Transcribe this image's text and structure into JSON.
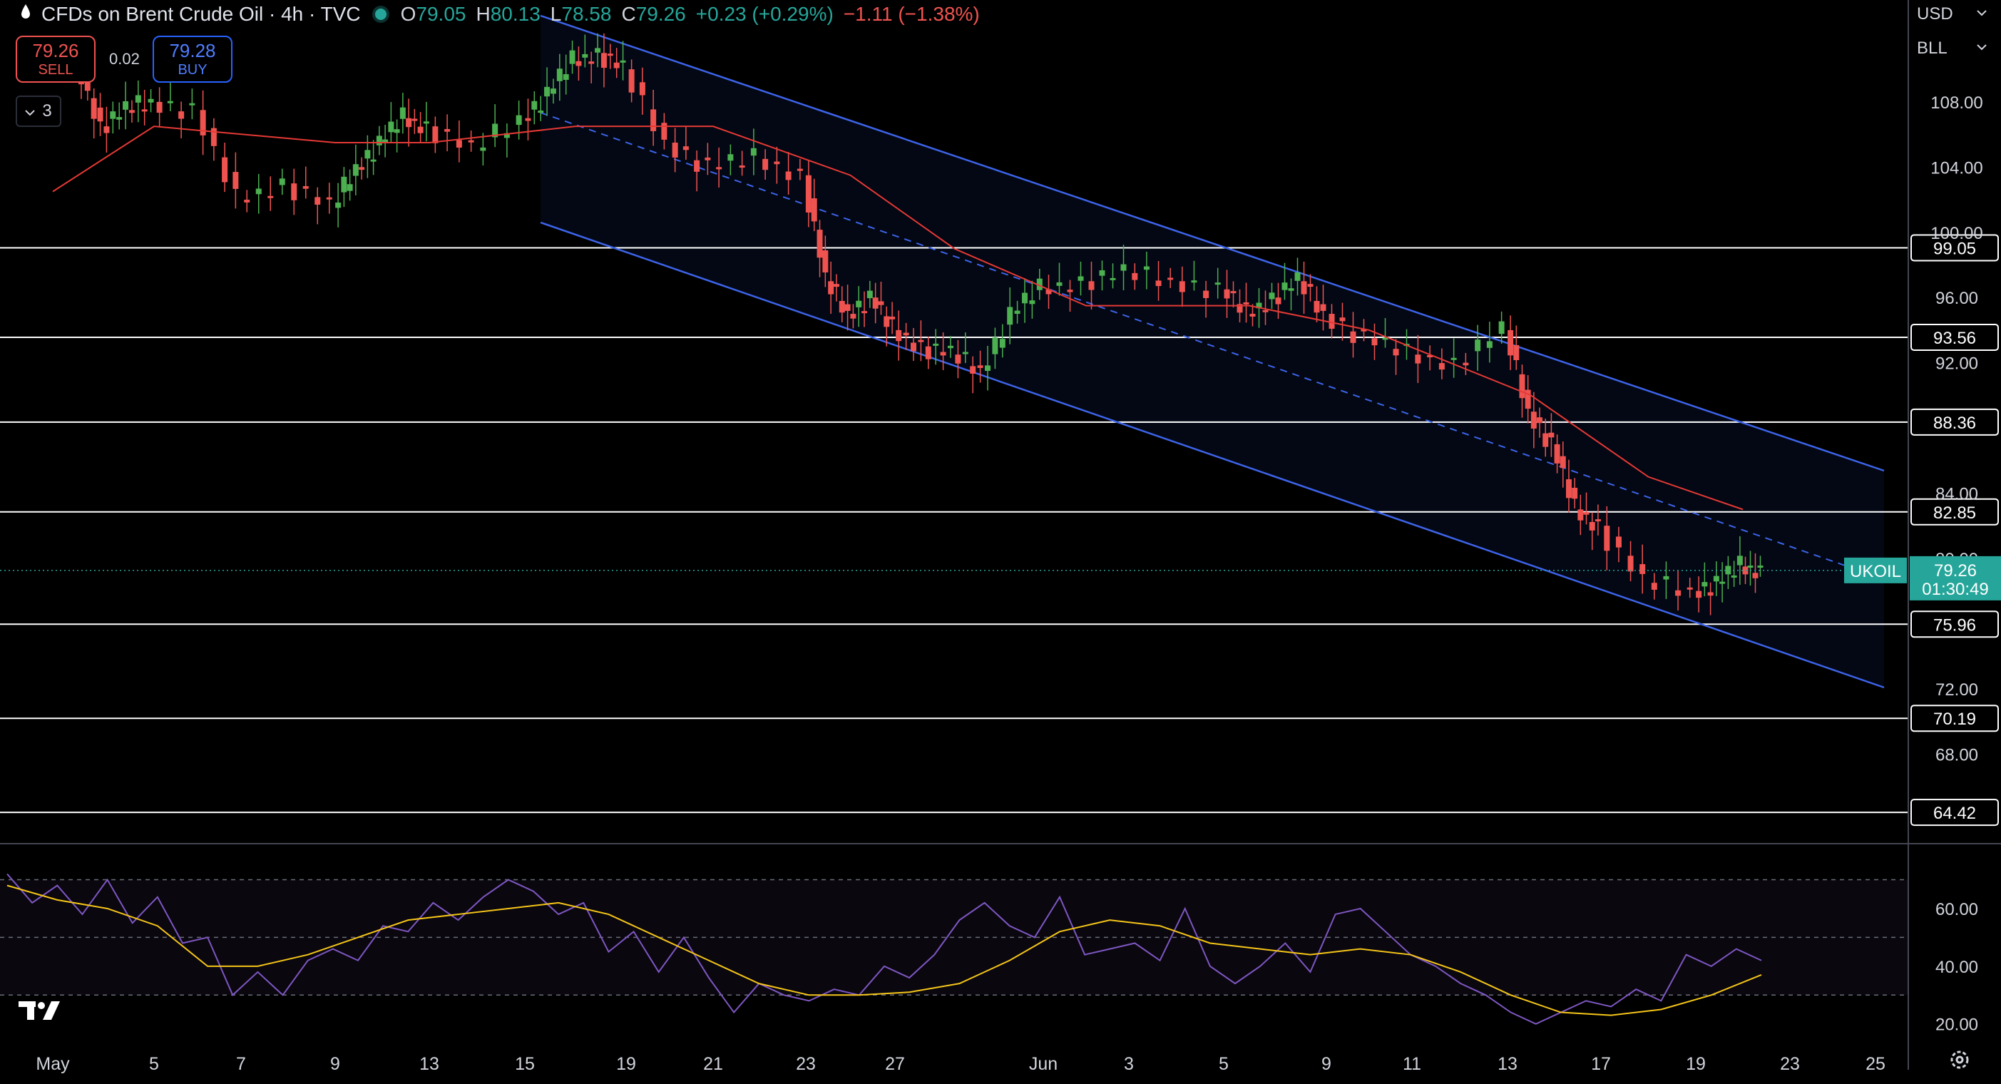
{
  "header": {
    "symbol": "CFDs on Brent Crude Oil · 4h · TVC",
    "open_label": "O",
    "open": "79.05",
    "high_label": "H",
    "high": "80.13",
    "low_label": "L",
    "low": "78.58",
    "close_label": "C",
    "close": "79.26",
    "change": "+0.23 (+0.29%)",
    "change2": "−1.11 (−1.38%)"
  },
  "trade": {
    "sell_price": "79.26",
    "sell_label": "SELL",
    "buy_price": "79.28",
    "buy_label": "BUY",
    "spread": "0.02"
  },
  "indicators_count": "3",
  "currency": "USD",
  "unit": "BLL",
  "colors": {
    "background": "#000000",
    "up": "#26a69a",
    "candle_up": "#4caf50",
    "down": "#ef5350",
    "ma": "#e53935",
    "channel": "#3d63e8",
    "rsi": "#7e57c2",
    "rsi_ma": "#f5c518",
    "price_tag": "#26a69a"
  },
  "icons": {
    "logo": "tradingview-logo-icon",
    "settings": "gear-icon",
    "chevron": "chevron-down-icon",
    "drop": "oil-drop-icon"
  },
  "chart_data": [
    {
      "type": "line",
      "name": "price",
      "title": "CFDs on Brent Crude Oil · 4h · TVC",
      "x_ticks": [
        "May",
        "5",
        "7",
        "9",
        "13",
        "15",
        "19",
        "21",
        "23",
        "27",
        "Jun",
        "3",
        "5",
        "9",
        "11",
        "13",
        "17",
        "19",
        "23",
        "25"
      ],
      "y_ticks": [
        "108.00",
        "104.00",
        "100.00",
        "96.00",
        "92.00",
        "84.00",
        "80.00",
        "72.00",
        "68.00"
      ],
      "ylim": [
        62.5,
        112.5
      ],
      "series": [
        {
          "name": "UKOIL",
          "x": [
            "May 1",
            "May 2",
            "May 3",
            "May 4",
            "May 5",
            "May 6",
            "May 7",
            "May 8",
            "May 9",
            "May 10",
            "May 11",
            "May 12",
            "May 13",
            "May 14",
            "May 15",
            "May 16",
            "May 17",
            "May 18",
            "May 19",
            "May 20",
            "May 21",
            "May 22",
            "May 23",
            "May 24",
            "May 25",
            "May 26",
            "May 27",
            "May 28",
            "May 29",
            "May 30",
            "May 31",
            "Jun 1",
            "Jun 2",
            "Jun 3",
            "Jun 4",
            "Jun 5",
            "Jun 6",
            "Jun 7",
            "Jun 8",
            "Jun 9",
            "Jun 10",
            "Jun 11",
            "Jun 12",
            "Jun 13",
            "Jun 14",
            "Jun 15",
            "Jun 16",
            "Jun 17",
            "Jun 18",
            "Jun 19",
            "Jun 20",
            "Jun 21"
          ],
          "values": [
            110.5,
            106.5,
            107.5,
            108.0,
            107.5,
            102.0,
            103.0,
            101.5,
            104.0,
            105.5,
            107.0,
            106.5,
            105.0,
            107.0,
            108.5,
            110.5,
            111.0,
            110.0,
            105.5,
            104.0,
            104.5,
            103.5,
            97.0,
            95.0,
            96.0,
            94.0,
            93.0,
            92.5,
            91.5,
            95.0,
            96.5,
            97.0,
            97.5,
            97.0,
            96.5,
            95.0,
            96.0,
            97.0,
            95.0,
            93.5,
            92.5,
            92.0,
            94.0,
            89.0,
            87.0,
            83.0,
            82.0,
            78.5,
            78.0,
            78.5,
            79.5,
            79.26
          ]
        },
        {
          "name": "MA",
          "x": [
            "May 1",
            "May 5",
            "May 9",
            "May 13",
            "May 17",
            "May 21",
            "May 25",
            "May 29",
            "Jun 2",
            "Jun 6",
            "Jun 10",
            "Jun 14",
            "Jun 18",
            "Jun 21"
          ],
          "values": [
            102.5,
            106.5,
            105.5,
            105.5,
            106.5,
            106.5,
            103.5,
            99.0,
            95.5,
            95.5,
            94.0,
            90.0,
            85.0,
            83.0
          ]
        }
      ],
      "levels": [
        "99.05",
        "93.56",
        "88.36",
        "82.85",
        "75.96",
        "70.19",
        "64.42"
      ],
      "last_price": {
        "label": "UKOIL",
        "value": "79.26",
        "countdown": "01:30:49"
      }
    },
    {
      "type": "line",
      "name": "RSI",
      "y_ticks": [
        "60.00",
        "40.00",
        "20.00"
      ],
      "bands": [
        70,
        50,
        30
      ],
      "ylim": [
        14,
        82
      ],
      "series": [
        {
          "name": "RSI",
          "values": [
            72,
            62,
            68,
            58,
            70,
            55,
            64,
            48,
            50,
            30,
            38,
            30,
            42,
            46,
            42,
            54,
            52,
            62,
            56,
            64,
            70,
            66,
            58,
            62,
            45,
            52,
            38,
            50,
            36,
            24,
            34,
            30,
            28,
            32,
            30,
            40,
            36,
            44,
            56,
            62,
            54,
            50,
            64,
            44,
            46,
            48,
            42,
            60,
            40,
            34,
            40,
            48,
            38,
            58,
            60,
            52,
            44,
            40,
            34,
            30,
            24,
            20,
            24,
            28,
            26,
            32,
            28,
            44,
            40,
            46,
            42
          ]
        },
        {
          "name": "RSI MA",
          "values": [
            68,
            63,
            60,
            54,
            40,
            40,
            44,
            50,
            56,
            58,
            60,
            62,
            58,
            50,
            42,
            34,
            30,
            30,
            31,
            34,
            42,
            52,
            56,
            54,
            48,
            46,
            44,
            46,
            44,
            38,
            30,
            24,
            23,
            25,
            30,
            37
          ]
        }
      ]
    }
  ]
}
